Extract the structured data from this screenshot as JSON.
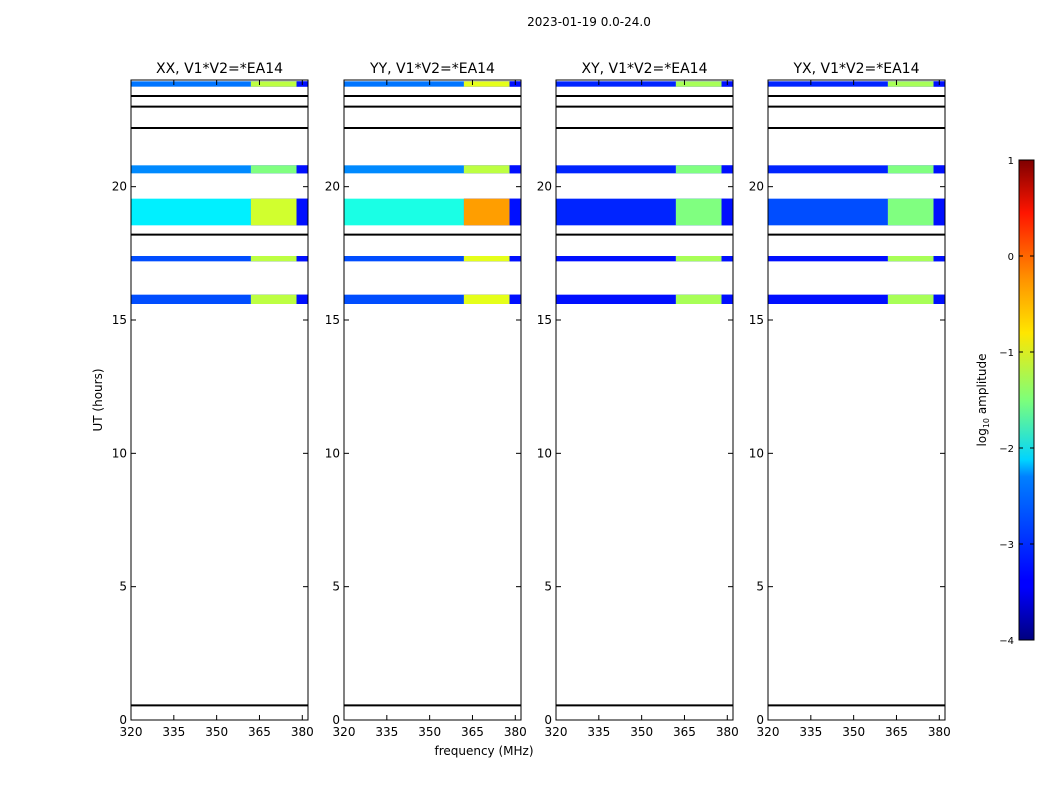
{
  "chart_data": {
    "type": "heatmap",
    "suptitle": "2023-01-19 0.0-24.0",
    "xlabel": "frequency (MHz)",
    "ylabel": "UT (hours)",
    "xlim": [
      320,
      382
    ],
    "ylim": [
      0,
      24
    ],
    "xticks": [
      320,
      335,
      350,
      365,
      380
    ],
    "yticks": [
      0,
      5,
      10,
      15,
      20
    ],
    "colorbar": {
      "label": "log$_{10}$ amplitude",
      "label_main": "log",
      "label_sub": "10",
      "label_rest": " amplitude",
      "range": [
        -4,
        1
      ],
      "ticks": [
        1,
        0,
        -1,
        -2,
        -3,
        -4
      ],
      "tick_labels": [
        "1",
        "0",
        "−1",
        "−2",
        "−3",
        "−4"
      ],
      "colormap": "jet"
    },
    "horizontal_lines_ut": [
      0.55,
      22.2,
      23.0,
      23.4,
      18.2
    ],
    "panels": [
      {
        "title": "XX, V1*V2=*EA14",
        "bands": [
          {
            "t0": 23.75,
            "t1": 23.95,
            "f0": 320,
            "f1": 362,
            "level": -2.8
          },
          {
            "t0": 23.75,
            "t1": 23.95,
            "f0": 362,
            "f1": 378,
            "level": -1.2
          },
          {
            "t0": 20.5,
            "t1": 20.8,
            "f0": 320,
            "f1": 362,
            "level": -2.7
          },
          {
            "t0": 20.5,
            "t1": 20.8,
            "f0": 362,
            "f1": 378,
            "level": -1.5
          },
          {
            "t0": 18.55,
            "t1": 19.55,
            "f0": 320,
            "f1": 362,
            "level": -2.2
          },
          {
            "t0": 18.55,
            "t1": 19.55,
            "f0": 362,
            "f1": 378,
            "level": -1.1
          },
          {
            "t0": 17.2,
            "t1": 17.4,
            "f0": 320,
            "f1": 362,
            "level": -3.0
          },
          {
            "t0": 17.2,
            "t1": 17.4,
            "f0": 362,
            "f1": 378,
            "level": -1.2
          },
          {
            "t0": 15.6,
            "t1": 15.95,
            "f0": 320,
            "f1": 362,
            "level": -3.0
          },
          {
            "t0": 15.6,
            "t1": 15.95,
            "f0": 362,
            "f1": 378,
            "level": -1.2
          }
        ]
      },
      {
        "title": "YY, V1*V2=*EA14",
        "bands": [
          {
            "t0": 23.75,
            "t1": 23.95,
            "f0": 320,
            "f1": 362,
            "level": -2.8
          },
          {
            "t0": 23.75,
            "t1": 23.95,
            "f0": 362,
            "f1": 378,
            "level": -1.0
          },
          {
            "t0": 20.5,
            "t1": 20.8,
            "f0": 320,
            "f1": 362,
            "level": -2.7
          },
          {
            "t0": 20.5,
            "t1": 20.8,
            "f0": 362,
            "f1": 378,
            "level": -1.2
          },
          {
            "t0": 18.55,
            "t1": 19.55,
            "f0": 320,
            "f1": 362,
            "level": -2.0
          },
          {
            "t0": 18.55,
            "t1": 19.55,
            "f0": 362,
            "f1": 378,
            "level": -0.4
          },
          {
            "t0": 17.2,
            "t1": 17.4,
            "f0": 320,
            "f1": 362,
            "level": -3.0
          },
          {
            "t0": 17.2,
            "t1": 17.4,
            "f0": 362,
            "f1": 378,
            "level": -1.0
          },
          {
            "t0": 15.6,
            "t1": 15.95,
            "f0": 320,
            "f1": 362,
            "level": -3.0
          },
          {
            "t0": 15.6,
            "t1": 15.95,
            "f0": 362,
            "f1": 378,
            "level": -1.0
          }
        ]
      },
      {
        "title": "XY, V1*V2=*EA14",
        "bands": [
          {
            "t0": 23.75,
            "t1": 23.95,
            "f0": 320,
            "f1": 362,
            "level": -3.2
          },
          {
            "t0": 23.75,
            "t1": 23.95,
            "f0": 362,
            "f1": 378,
            "level": -1.3
          },
          {
            "t0": 20.5,
            "t1": 20.8,
            "f0": 320,
            "f1": 362,
            "level": -3.2
          },
          {
            "t0": 20.5,
            "t1": 20.8,
            "f0": 362,
            "f1": 378,
            "level": -1.5
          },
          {
            "t0": 18.55,
            "t1": 19.55,
            "f0": 320,
            "f1": 362,
            "level": -3.2
          },
          {
            "t0": 18.55,
            "t1": 19.55,
            "f0": 362,
            "f1": 378,
            "level": -1.5
          },
          {
            "t0": 17.2,
            "t1": 17.4,
            "f0": 320,
            "f1": 362,
            "level": -3.3
          },
          {
            "t0": 17.2,
            "t1": 17.4,
            "f0": 362,
            "f1": 378,
            "level": -1.3
          },
          {
            "t0": 15.6,
            "t1": 15.95,
            "f0": 320,
            "f1": 362,
            "level": -3.3
          },
          {
            "t0": 15.6,
            "t1": 15.95,
            "f0": 362,
            "f1": 378,
            "level": -1.3
          }
        ]
      },
      {
        "title": "YX, V1*V2=*EA14",
        "bands": [
          {
            "t0": 23.75,
            "t1": 23.95,
            "f0": 320,
            "f1": 362,
            "level": -3.2
          },
          {
            "t0": 23.75,
            "t1": 23.95,
            "f0": 362,
            "f1": 378,
            "level": -1.3
          },
          {
            "t0": 20.5,
            "t1": 20.8,
            "f0": 320,
            "f1": 362,
            "level": -3.2
          },
          {
            "t0": 20.5,
            "t1": 20.8,
            "f0": 362,
            "f1": 378,
            "level": -1.5
          },
          {
            "t0": 18.55,
            "t1": 19.55,
            "f0": 320,
            "f1": 362,
            "level": -3.0
          },
          {
            "t0": 18.55,
            "t1": 19.55,
            "f0": 362,
            "f1": 378,
            "level": -1.5
          },
          {
            "t0": 17.2,
            "t1": 17.4,
            "f0": 320,
            "f1": 362,
            "level": -3.3
          },
          {
            "t0": 17.2,
            "t1": 17.4,
            "f0": 362,
            "f1": 378,
            "level": -1.3
          },
          {
            "t0": 15.6,
            "t1": 15.95,
            "f0": 320,
            "f1": 362,
            "level": -3.3
          },
          {
            "t0": 15.6,
            "t1": 15.95,
            "f0": 362,
            "f1": 378,
            "level": -1.3
          }
        ]
      }
    ]
  }
}
